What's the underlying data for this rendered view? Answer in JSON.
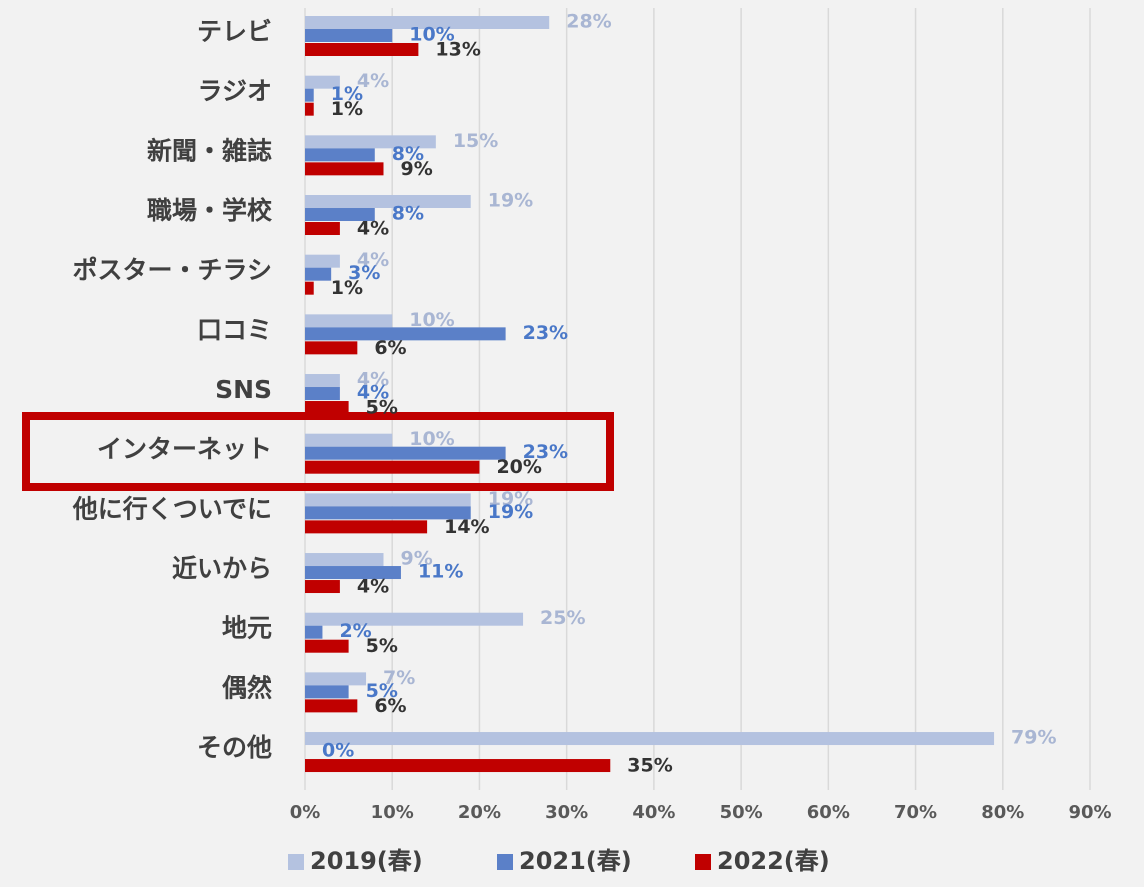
{
  "chart_data": {
    "type": "bar",
    "orientation": "horizontal",
    "categories": [
      "テレビ",
      "ラジオ",
      "新聞・雑誌",
      "職場・学校",
      "ポスター・チラシ",
      "口コミ",
      "SNS",
      "インターネット",
      "他に行くついでに",
      "近いから",
      "地元",
      "偶然",
      "その他"
    ],
    "series": [
      {
        "name": "2019(春)",
        "color": "#b4c2e0",
        "label_color": "#a9b6d3",
        "values": [
          28,
          4,
          15,
          19,
          4,
          10,
          4,
          10,
          19,
          9,
          25,
          7,
          79
        ],
        "value_labels": [
          "28%",
          "4%",
          "15%",
          "19%",
          "4%",
          "10%",
          "4%",
          "10%",
          "19%",
          "9%",
          "25%",
          "7%",
          "79%"
        ]
      },
      {
        "name": "2021(春)",
        "color": "#5b80c8",
        "label_color": "#4a78c8",
        "values": [
          10,
          1,
          8,
          8,
          3,
          23,
          4,
          23,
          19,
          11,
          2,
          5,
          0
        ],
        "value_labels": [
          "10%",
          "1%",
          "8%",
          "8%",
          "3%",
          "23%",
          "4%",
          "23%",
          "19%",
          "11%",
          "2%",
          "5%",
          "0%"
        ]
      },
      {
        "name": "2022(春)",
        "color": "#c00000",
        "label_color": "#333333",
        "values": [
          13,
          1,
          9,
          4,
          1,
          6,
          5,
          20,
          14,
          4,
          5,
          6,
          35
        ],
        "value_labels": [
          "13%",
          "1%",
          "9%",
          "4%",
          "1%",
          "6%",
          "5%",
          "20%",
          "14%",
          "4%",
          "5%",
          "6%",
          "35%"
        ]
      }
    ],
    "xlim": [
      0,
      90
    ],
    "xticks": [
      {
        "value": 0,
        "label": "0%"
      },
      {
        "value": 10,
        "label": "10%"
      },
      {
        "value": 20,
        "label": "20%"
      },
      {
        "value": 30,
        "label": "30%"
      },
      {
        "value": 40,
        "label": "40%"
      },
      {
        "value": 50,
        "label": "50%"
      },
      {
        "value": 60,
        "label": "60%"
      },
      {
        "value": 70,
        "label": "70%"
      },
      {
        "value": 80,
        "label": "80%"
      },
      {
        "value": 90,
        "label": "90%"
      }
    ],
    "grid": true,
    "legend": "bottom"
  }
}
